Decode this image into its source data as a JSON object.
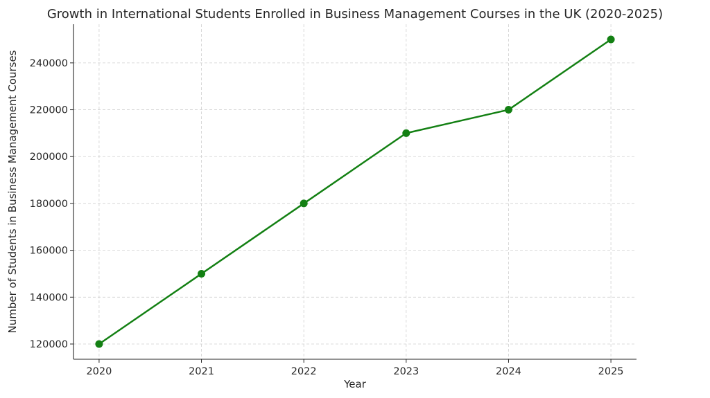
{
  "chart_data": {
    "type": "line",
    "title": "Growth in International Students Enrolled in Business Management Courses in the UK (2020-2025)",
    "xlabel": "Year",
    "ylabel": "Number of Students in Business Management Courses",
    "x": [
      2020,
      2021,
      2022,
      2023,
      2024,
      2025
    ],
    "x_tick_labels": [
      "2020",
      "2021",
      "2022",
      "2023",
      "2024",
      "2025"
    ],
    "y_ticks": [
      120000,
      140000,
      160000,
      180000,
      200000,
      220000,
      240000
    ],
    "y_tick_labels": [
      "120000",
      "140000",
      "160000",
      "180000",
      "200000",
      "220000",
      "240000"
    ],
    "xlim": [
      2019.75,
      2025.25
    ],
    "ylim": [
      113500,
      256500
    ],
    "grid": true,
    "legend": false,
    "series": [
      {
        "values": [
          120000,
          150000,
          180000,
          210000,
          220000,
          250000
        ],
        "color": "#138013",
        "marker": "circle"
      }
    ]
  }
}
